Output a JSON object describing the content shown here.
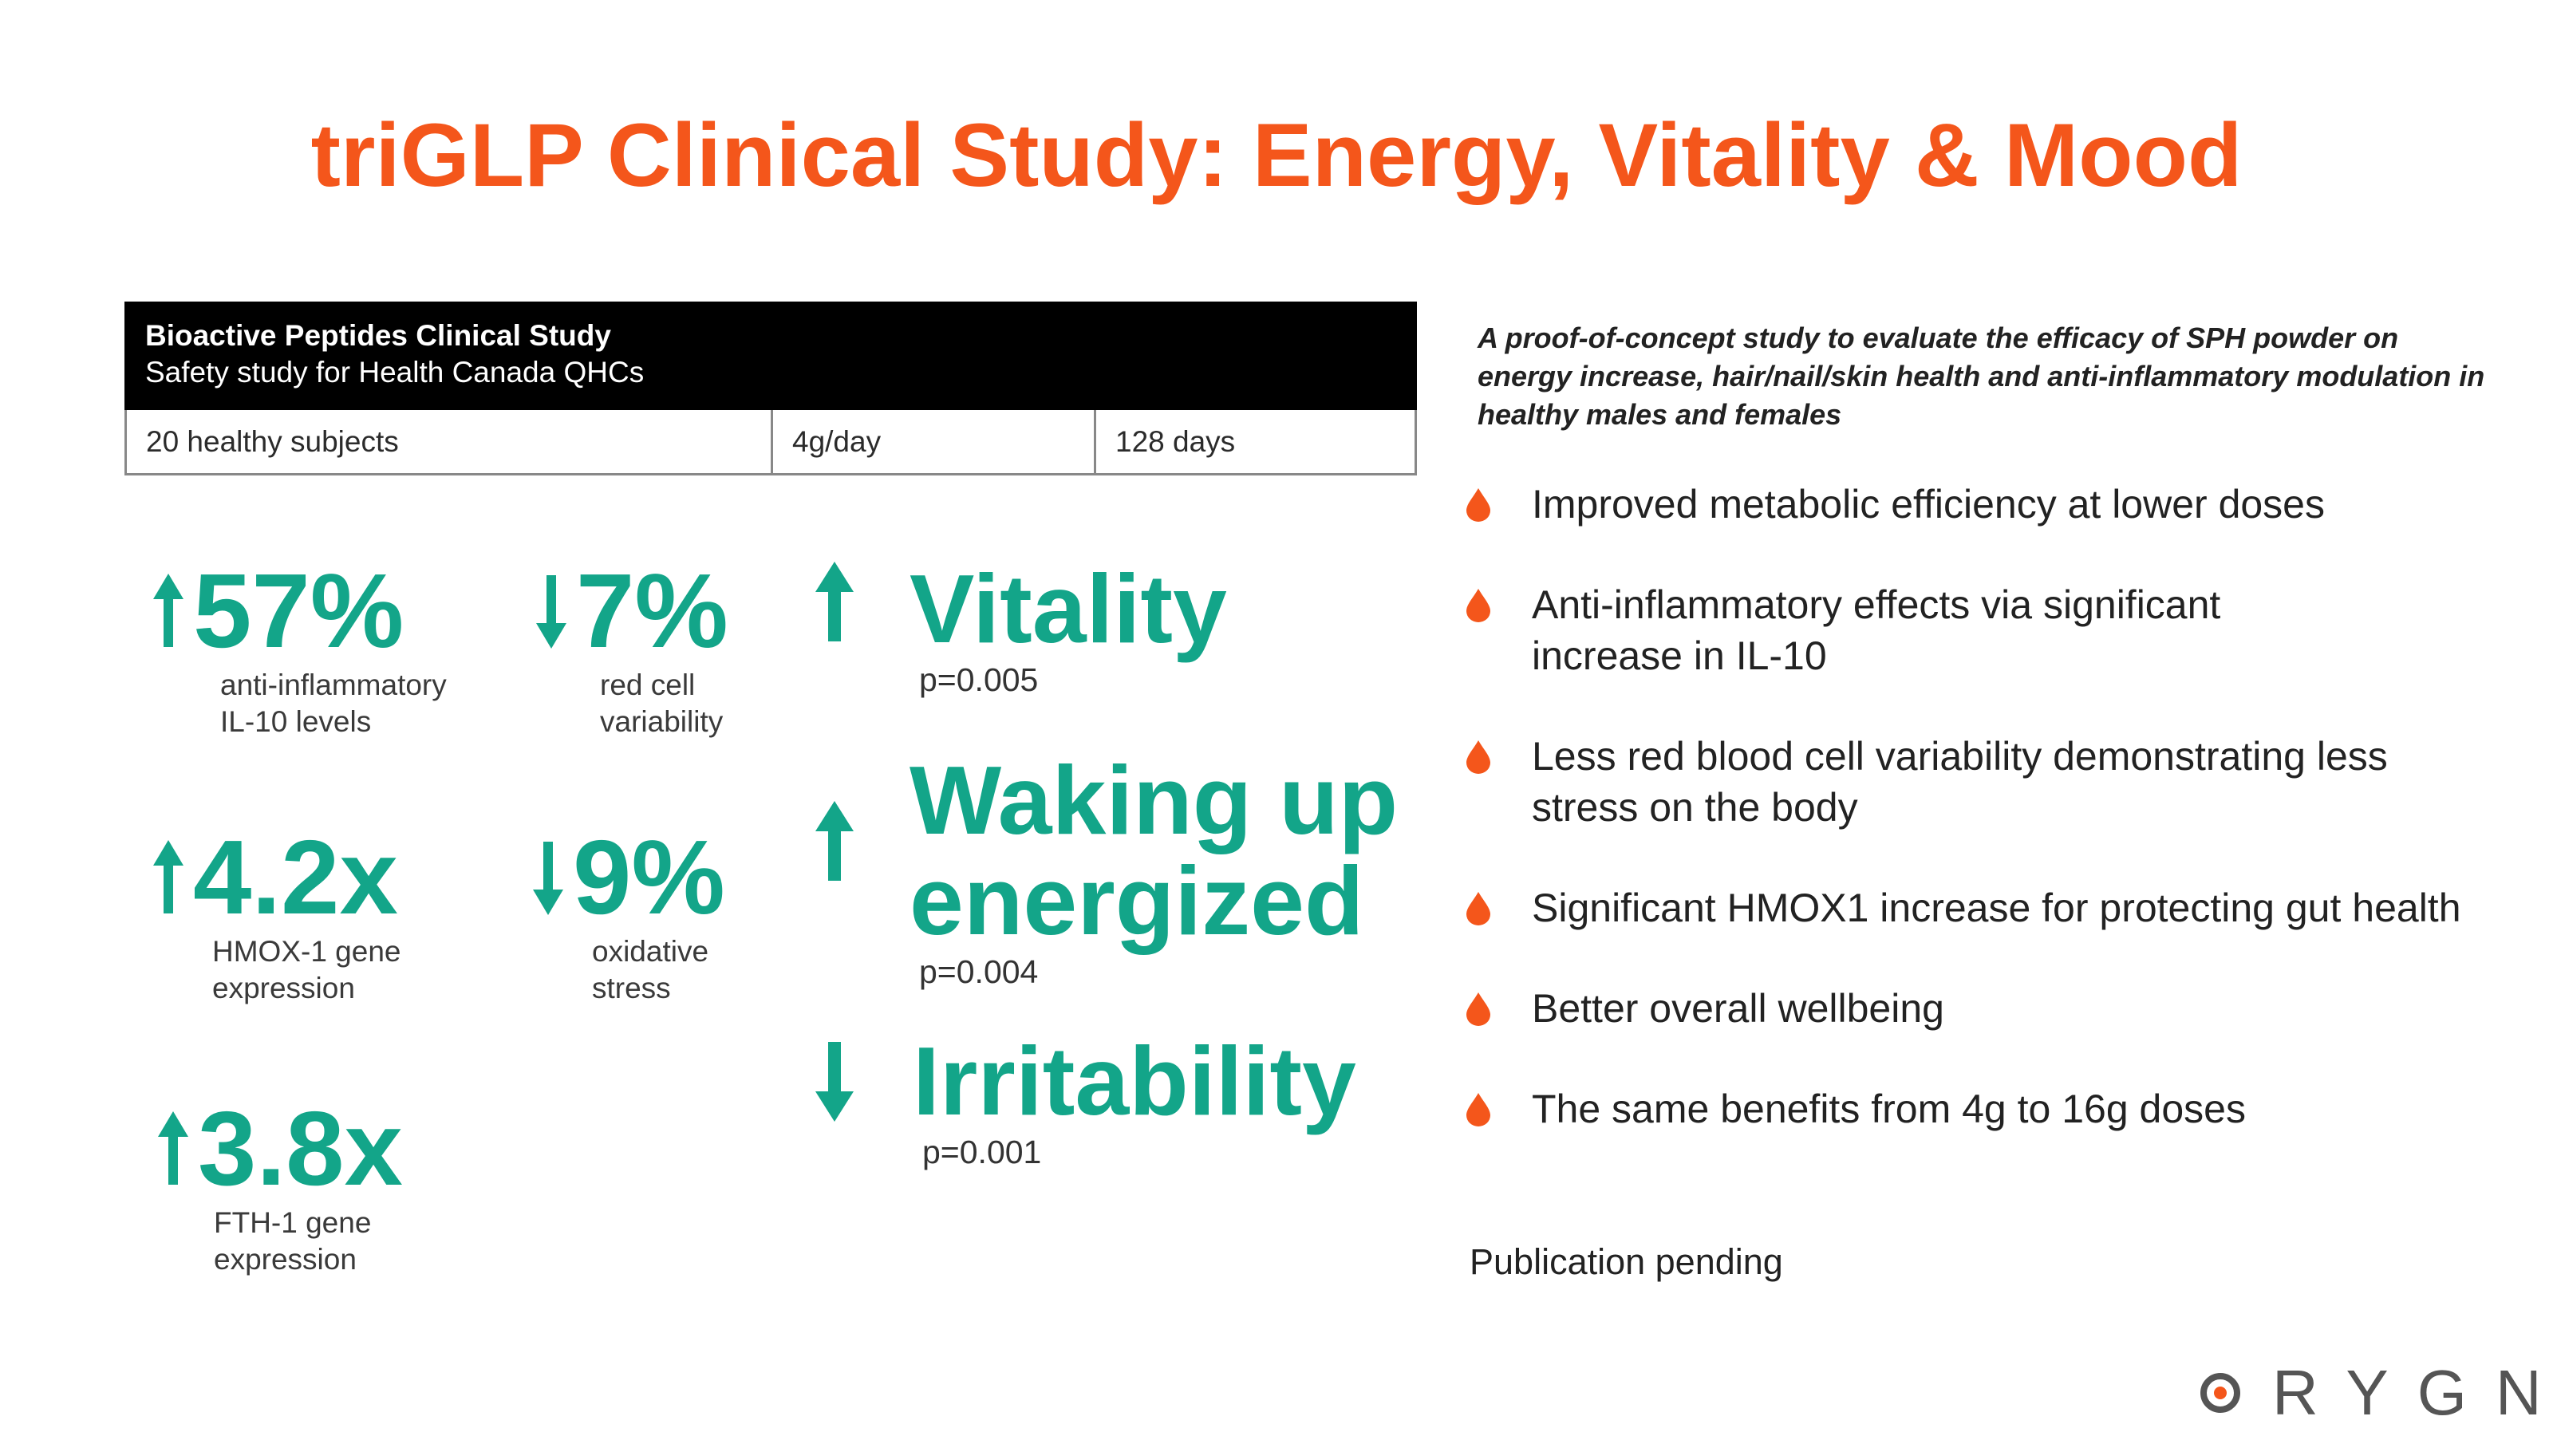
{
  "title": "triGLP Clinical Study: Energy, Vitality & Mood",
  "study": {
    "heading": "Bioactive Peptides Clinical Study",
    "subheading": "Safety study for Health Canada QHCs",
    "subjects": "20 healthy subjects",
    "dose": "4g/day",
    "duration": "128 days"
  },
  "stats": [
    {
      "direction": "up",
      "value": "57%",
      "label_line1": "anti-inflammatory",
      "label_line2": "IL-10 levels"
    },
    {
      "direction": "down",
      "value": "7%",
      "label_line1": "red cell",
      "label_line2": "variability"
    },
    {
      "direction": "up",
      "value": "4.2x",
      "label_line1": "HMOX-1 gene",
      "label_line2": "expression"
    },
    {
      "direction": "down",
      "value": "9%",
      "label_line1": "oxidative",
      "label_line2": "stress"
    },
    {
      "direction": "up",
      "value": "3.8x",
      "label_line1": "FTH-1 gene",
      "label_line2": "expression"
    }
  ],
  "mood": [
    {
      "direction": "up",
      "line1": "Vitality",
      "line2": "",
      "p": "p=0.005"
    },
    {
      "direction": "up",
      "line1": "Waking up",
      "line2": "energized",
      "p": "p=0.004"
    },
    {
      "direction": "down",
      "line1": "Irritability",
      "line2": "",
      "p": "p=0.001"
    }
  ],
  "intro": "A proof-of-concept study to evaluate the efficacy of SPH powder on energy increase, hair/nail/skin health and anti-inflammatory modulation in healthy males and females",
  "bullets": [
    "Improved metabolic efficiency at lower doses",
    "Anti-inflammatory effects via significant increase in IL-10",
    "Less red blood cell variability demonstrating less stress on the body",
    "Significant HMOX1 increase for protecting gut health",
    "Better overall wellbeing",
    "The same benefits from 4g to 16g doses"
  ],
  "publication_note": "Publication pending",
  "logo": {
    "text": "RYGN",
    "accent_color": "#f4561b"
  },
  "colors": {
    "title": "#f4561b",
    "stat_green": "#13a589",
    "bullet": "#f4561b"
  },
  "icons": {
    "up": "arrow-up-icon",
    "down": "arrow-down-icon",
    "bullet": "drop-icon"
  }
}
